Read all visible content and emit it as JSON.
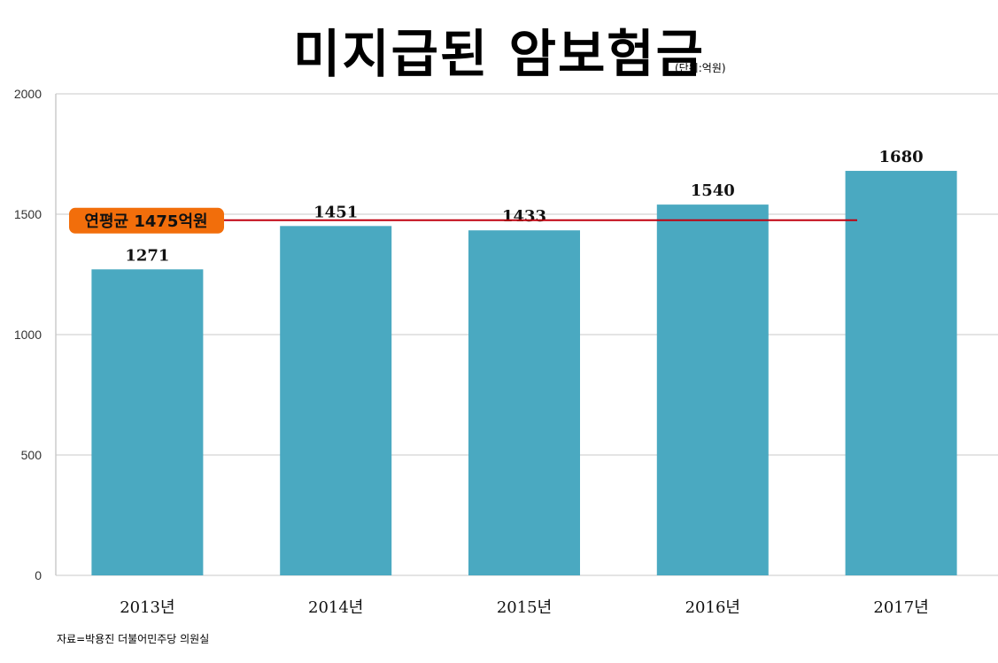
{
  "chart_data": {
    "type": "bar",
    "title": "미지급된 암보험금",
    "unit_note": "(단위:억원)",
    "categories": [
      "2013년",
      "2014년",
      "2015년",
      "2016년",
      "2017년"
    ],
    "values": [
      1271,
      1451,
      1433,
      1540,
      1680
    ],
    "data_labels": [
      "1271",
      "1451",
      "1433",
      "1540",
      "1680"
    ],
    "ylim": [
      0,
      2000
    ],
    "yticks": [
      "0",
      "500",
      "1000",
      "1500",
      "2000"
    ],
    "ytick_values": [
      0,
      500,
      1000,
      1500,
      2000
    ],
    "grid": true,
    "reference_line": {
      "value": 1475,
      "label": "연평균 1475억원"
    },
    "source": "자료=박용진 더불어민주당 의원실"
  },
  "colors": {
    "bar": "#4aa9c1",
    "line": "#c0000f",
    "badge": "#f26e0b",
    "grid": "#c8c8c8"
  }
}
